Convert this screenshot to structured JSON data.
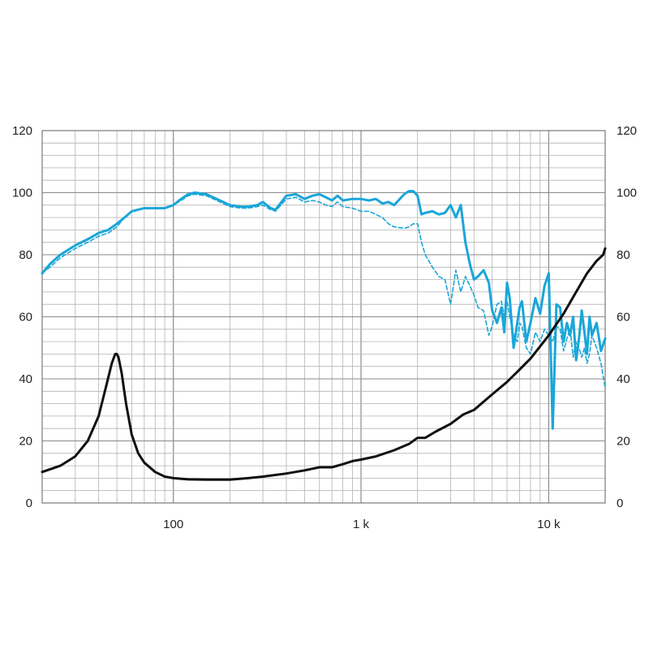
{
  "chart_data": {
    "type": "line",
    "title": "",
    "xlabel": "",
    "ylabel": "",
    "xscale": "log",
    "xlim": [
      20,
      20000
    ],
    "ylim": [
      0,
      120
    ],
    "grid": true,
    "legend": "none",
    "x_tick_labels": [
      {
        "value": 100,
        "label": "100"
      },
      {
        "value": 1000,
        "label": "1 k"
      },
      {
        "value": 10000,
        "label": "10 k"
      }
    ],
    "y_tick_labels": [
      "0",
      "20",
      "40",
      "60",
      "80",
      "100",
      "120"
    ],
    "y_right_tick_labels": [
      "0",
      "20",
      "40",
      "60",
      "80",
      "100",
      "120"
    ],
    "series": [
      {
        "color": "#1aa6d8",
        "style": "solid",
        "x": [
          20,
          22,
          25,
          30,
          35,
          40,
          45,
          50,
          55,
          60,
          70,
          80,
          90,
          100,
          110,
          120,
          130,
          150,
          170,
          200,
          230,
          250,
          280,
          300,
          330,
          350,
          400,
          450,
          500,
          550,
          600,
          650,
          700,
          750,
          800,
          900,
          1000,
          1100,
          1200,
          1300,
          1400,
          1500,
          1700,
          1800,
          1900,
          2000,
          2100,
          2200,
          2400,
          2600,
          2800,
          3000,
          3200,
          3400,
          3600,
          3800,
          4000,
          4200,
          4500,
          4800,
          5000,
          5300,
          5600,
          5800,
          6000,
          6200,
          6500,
          6800,
          7000,
          7200,
          7600,
          8000,
          8500,
          9000,
          9500,
          10000,
          10500,
          11000,
          11500,
          12000,
          12500,
          13000,
          13500,
          14000,
          14500,
          15000,
          15500,
          16000,
          16500,
          17000,
          18000,
          19000,
          20000
        ],
        "y": [
          74,
          77,
          80,
          83,
          85,
          87,
          88,
          90,
          92,
          94,
          95,
          95,
          95,
          96,
          98,
          99.5,
          100,
          99.5,
          98,
          96,
          95.5,
          95.5,
          96,
          97,
          95,
          94.5,
          99,
          99.5,
          98,
          99,
          99.5,
          98.5,
          97.5,
          99,
          97.5,
          98,
          98,
          97.5,
          98,
          96.5,
          97,
          96,
          99.5,
          100.5,
          100.5,
          99,
          93,
          93.5,
          94,
          93,
          93.5,
          96,
          92,
          96,
          84,
          77,
          72,
          73,
          75,
          71,
          62,
          58,
          63,
          55,
          71,
          66,
          50,
          58,
          63,
          65,
          52,
          58,
          66,
          61,
          70,
          74,
          24,
          64,
          63,
          52,
          58,
          54,
          60,
          46,
          53,
          62,
          55,
          48,
          60,
          54,
          58,
          49,
          53
        ]
      },
      {
        "color": "#1aa6d8",
        "style": "dashed",
        "x": [
          20,
          22,
          25,
          30,
          35,
          40,
          45,
          50,
          55,
          60,
          70,
          80,
          90,
          100,
          110,
          120,
          130,
          150,
          170,
          200,
          230,
          250,
          280,
          300,
          330,
          350,
          400,
          450,
          500,
          550,
          600,
          650,
          700,
          750,
          800,
          900,
          1000,
          1100,
          1200,
          1300,
          1400,
          1500,
          1700,
          1800,
          1900,
          2000,
          2100,
          2200,
          2400,
          2600,
          2800,
          3000,
          3200,
          3400,
          3600,
          3800,
          4000,
          4200,
          4500,
          4800,
          5000,
          5300,
          5600,
          5800,
          6000,
          6200,
          6500,
          6800,
          7000,
          7200,
          7600,
          8000,
          8500,
          9000,
          9500,
          10000,
          10500,
          11000,
          11500,
          12000,
          12500,
          13000,
          13500,
          14000,
          14500,
          15000,
          15500,
          16000,
          16500,
          17000,
          18000,
          19000,
          20000
        ],
        "y": [
          74,
          76,
          79,
          82,
          84,
          86,
          87,
          89,
          92,
          94,
          95,
          95,
          95,
          96,
          97.5,
          99,
          99.5,
          99,
          97.5,
          95.5,
          95,
          95,
          95.5,
          96,
          94.5,
          94,
          98,
          98.5,
          97,
          97.5,
          97,
          96,
          95.5,
          97,
          95.5,
          95,
          94,
          94,
          93,
          92,
          90,
          89,
          88.5,
          89,
          90,
          90,
          84,
          80,
          76,
          73,
          72,
          64,
          75,
          68,
          73,
          70,
          67,
          63,
          62,
          54,
          57,
          64,
          65,
          60,
          65,
          60,
          54,
          52,
          58,
          57,
          50,
          48,
          55,
          52,
          56,
          54,
          52,
          57,
          56,
          49,
          53,
          56,
          47,
          52,
          50,
          47,
          50,
          45,
          48,
          54,
          50,
          45,
          37
        ]
      },
      {
        "color": "#111111",
        "style": "solid",
        "x": [
          20,
          25,
          30,
          35,
          40,
          44,
          47,
          49,
          50,
          51,
          53,
          56,
          60,
          65,
          70,
          80,
          90,
          100,
          120,
          150,
          200,
          250,
          300,
          400,
          500,
          600,
          700,
          800,
          900,
          1000,
          1200,
          1500,
          1800,
          2000,
          2200,
          2500,
          3000,
          3500,
          4000,
          5000,
          6000,
          7000,
          8000,
          10000,
          12000,
          14000,
          16000,
          18000,
          19500,
          20000
        ],
        "y": [
          10,
          12,
          15,
          20,
          28,
          38,
          45,
          48,
          48,
          47,
          42,
          32,
          22,
          16,
          13,
          10,
          8.5,
          8,
          7.6,
          7.5,
          7.5,
          8,
          8.5,
          9.5,
          10.5,
          11.5,
          11.5,
          12.5,
          13.5,
          14,
          15,
          17,
          19,
          21,
          21,
          23,
          25.5,
          28.5,
          30,
          35,
          39,
          43,
          46.5,
          54,
          61,
          68,
          74,
          78,
          80,
          82
        ]
      }
    ]
  }
}
